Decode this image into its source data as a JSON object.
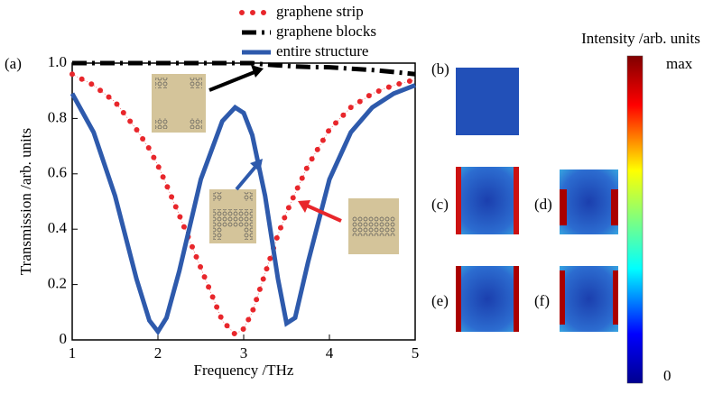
{
  "chart_data": {
    "type": "line",
    "xlabel": "Frequency /THz",
    "ylabel": "Transmission /arb. units",
    "panel_label": "(a)",
    "x": [
      1,
      1.25,
      1.5,
      1.75,
      1.9,
      2,
      2.1,
      2.25,
      2.5,
      2.75,
      2.9,
      3,
      3.1,
      3.25,
      3.4,
      3.5,
      3.6,
      3.75,
      4,
      4.25,
      4.5,
      4.75,
      5
    ],
    "series": [
      {
        "name": "graphene strip",
        "color": "#e8262b",
        "style": "dotted",
        "values": [
          0.96,
          0.92,
          0.86,
          0.76,
          0.69,
          0.63,
          0.56,
          0.45,
          0.26,
          0.07,
          0.02,
          0.04,
          0.1,
          0.24,
          0.38,
          0.46,
          0.53,
          0.63,
          0.76,
          0.84,
          0.89,
          0.92,
          0.94
        ]
      },
      {
        "name": "graphene blocks",
        "color": "#000000",
        "style": "dashdot",
        "values": [
          1.0,
          1.0,
          1.0,
          1.0,
          1.0,
          1.0,
          1.0,
          1.0,
          1.0,
          1.0,
          1.0,
          1.0,
          1.0,
          0.995,
          0.992,
          0.99,
          0.988,
          0.986,
          0.985,
          0.98,
          0.975,
          0.968,
          0.96
        ]
      },
      {
        "name": "entire structure",
        "color": "#2e5aac",
        "style": "solid",
        "values": [
          0.89,
          0.75,
          0.52,
          0.22,
          0.07,
          0.03,
          0.08,
          0.25,
          0.58,
          0.79,
          0.84,
          0.82,
          0.74,
          0.52,
          0.22,
          0.06,
          0.08,
          0.28,
          0.58,
          0.75,
          0.84,
          0.89,
          0.92
        ]
      }
    ],
    "xlim": [
      1,
      5
    ],
    "ylim": [
      0,
      1
    ],
    "xticks": [
      1,
      2,
      3,
      4,
      5
    ],
    "yticks": [
      0,
      0.2,
      0.4,
      0.6,
      0.8,
      {
        "value": 1,
        "label": "1.0"
      }
    ],
    "field_panels": [
      "(b)",
      "(c)",
      "(d)",
      "(e)",
      "(f)"
    ],
    "colorbar": {
      "title": "Intensity /arb. units",
      "max_label": "max",
      "min_label": "0"
    }
  }
}
